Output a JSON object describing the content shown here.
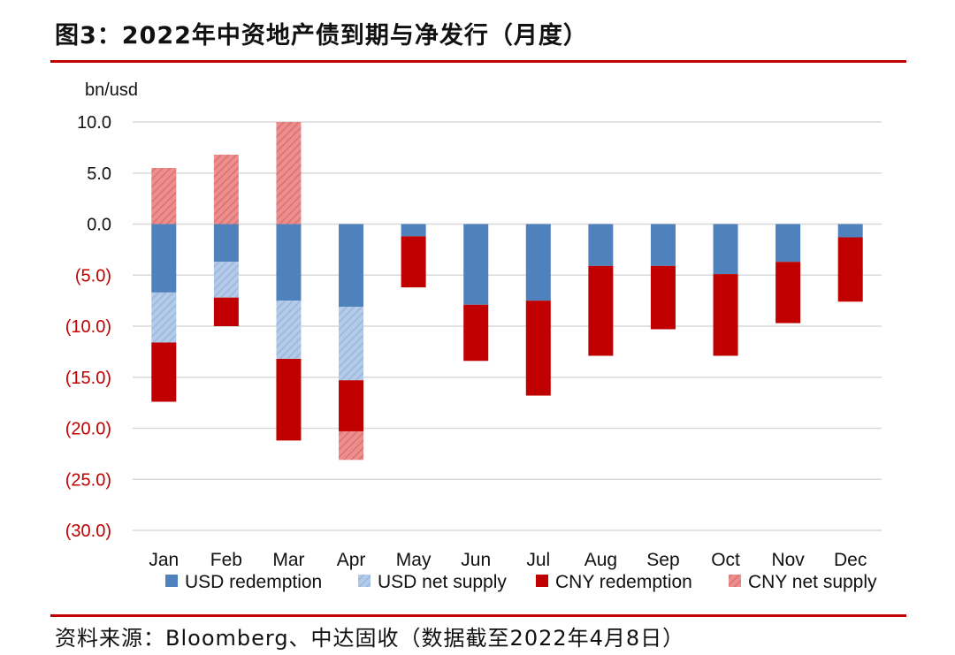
{
  "page": {
    "title": "图3：2022年中资地产债到期与净发行（月度）",
    "source": "资料来源：Bloomberg、中达固收（数据截至2022年4月8日）"
  },
  "chart_data": {
    "type": "bar",
    "stacked": true,
    "ylabel": "bn/usd",
    "ylim": [
      -30,
      10
    ],
    "y_ticks": [
      {
        "value": 10,
        "label": "10.0"
      },
      {
        "value": 5,
        "label": "5.0"
      },
      {
        "value": 0,
        "label": "0.0"
      },
      {
        "value": -5,
        "label": "(5.0)"
      },
      {
        "value": -10,
        "label": "(10.0)"
      },
      {
        "value": -15,
        "label": "(15.0)"
      },
      {
        "value": -20,
        "label": "(20.0)"
      },
      {
        "value": -25,
        "label": "(25.0)"
      },
      {
        "value": -30,
        "label": "(30.0)"
      }
    ],
    "categories": [
      "Jan",
      "Feb",
      "Mar",
      "Apr",
      "May",
      "Jun",
      "Jul",
      "Aug",
      "Sep",
      "Oct",
      "Nov",
      "Dec"
    ],
    "grid": true,
    "legend_position": "bottom",
    "series": [
      {
        "name": "USD redemption",
        "color": "#4f81bd",
        "hatched": false,
        "values": [
          -6.7,
          -3.7,
          -7.5,
          -8.1,
          -1.2,
          -7.9,
          -7.5,
          -4.1,
          -4.1,
          -4.9,
          -3.7,
          -1.3
        ]
      },
      {
        "name": "USD net supply",
        "color": "#a7c2e4",
        "hatched": true,
        "values": [
          -4.9,
          -3.5,
          -5.7,
          -7.2,
          0,
          0,
          0,
          0,
          0,
          0,
          0,
          0
        ]
      },
      {
        "name": "CNY redemption",
        "color": "#c00000",
        "hatched": false,
        "values": [
          -5.8,
          -2.8,
          -8.0,
          -5.0,
          -5.0,
          -5.5,
          -9.3,
          -8.8,
          -6.2,
          -8.0,
          -6.0,
          -6.3
        ]
      },
      {
        "name": "CNY net supply",
        "color": "#e47c7c",
        "hatched": true,
        "values": [
          5.5,
          6.8,
          10.0,
          -2.8,
          0,
          0,
          0,
          0,
          0,
          0,
          0,
          0
        ]
      }
    ]
  }
}
